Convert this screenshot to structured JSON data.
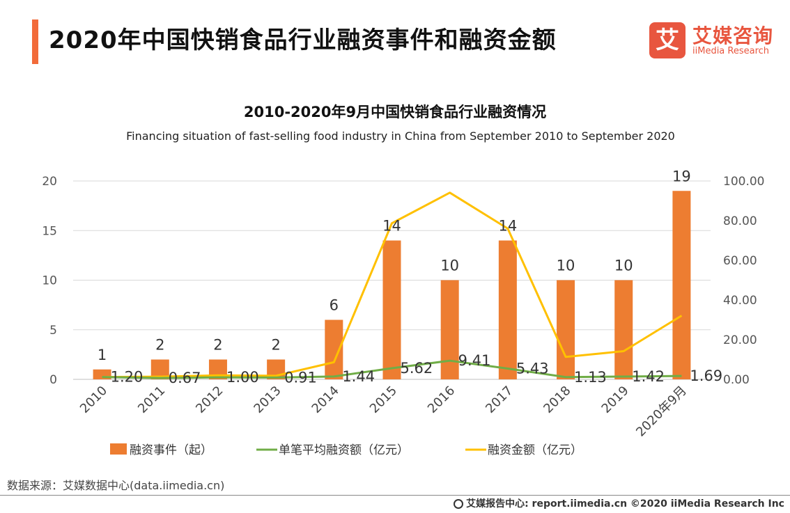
{
  "header": {
    "title": "2020年中国快销食品行业融资事件和融资金额"
  },
  "logo": {
    "mark": "艾",
    "name_cn": "艾媒咨询",
    "name_en": "iiMedia Research"
  },
  "colors": {
    "accent": "#f26b3a",
    "bar": "#ed7d31",
    "line_avg": "#70ad47",
    "line_amount": "#ffc000"
  },
  "chart_data": {
    "type": "bar",
    "title": "2010-2020年9月中国快销食品行业融资情况",
    "subtitle": "Financing situation of fast-selling food industry in China from September 2010 to September 2020",
    "categories": [
      "2010",
      "2011",
      "2012",
      "2013",
      "2014",
      "2015",
      "2016",
      "2017",
      "2018",
      "2019",
      "2020年9月"
    ],
    "y_left": {
      "min": 0,
      "max": 20,
      "ticks": [
        "0",
        "5",
        "10",
        "15",
        "20"
      ],
      "tick_values": [
        0,
        5,
        10,
        15,
        20
      ]
    },
    "y_right": {
      "min": 0,
      "max": 100,
      "ticks": [
        "0.00",
        "20.00",
        "40.00",
        "60.00",
        "80.00",
        "100.00"
      ],
      "tick_values": [
        0,
        20,
        40,
        60,
        80,
        100
      ]
    },
    "series": [
      {
        "name": "融资事件（起）",
        "type": "bar",
        "axis": "left",
        "values": [
          1,
          2,
          2,
          2,
          6,
          14,
          10,
          14,
          10,
          10,
          19
        ],
        "labels": [
          "1",
          "2",
          "2",
          "2",
          "6",
          "14",
          "10",
          "14",
          "10",
          "10",
          "19"
        ]
      },
      {
        "name": "单笔平均融资额（亿元）",
        "type": "line",
        "axis": "right",
        "values": [
          1.2,
          0.67,
          1.0,
          0.91,
          1.44,
          5.62,
          9.41,
          5.43,
          1.13,
          1.42,
          1.69
        ],
        "labels": [
          "1.20",
          "0.67",
          "1.00",
          "0.91",
          "1.44",
          "5.62",
          "9.41",
          "5.43",
          "1.13",
          "1.42",
          "1.69"
        ]
      },
      {
        "name": "融资金额（亿元）",
        "type": "line",
        "axis": "right",
        "values": [
          1.2,
          1.34,
          2.0,
          1.82,
          8.64,
          78.68,
          94.1,
          76.02,
          11.3,
          14.2,
          32.11
        ]
      }
    ],
    "legend": [
      "融资事件（起）",
      "单笔平均融资额（亿元）",
      "融资金额（亿元）"
    ],
    "legend_position": "bottom"
  },
  "footer": {
    "source": "数据来源：艾媒数据中心(data.iimedia.cn)",
    "copyright": "艾媒报告中心: report.iimedia.cn  ©2020  iiMedia Research  Inc"
  }
}
